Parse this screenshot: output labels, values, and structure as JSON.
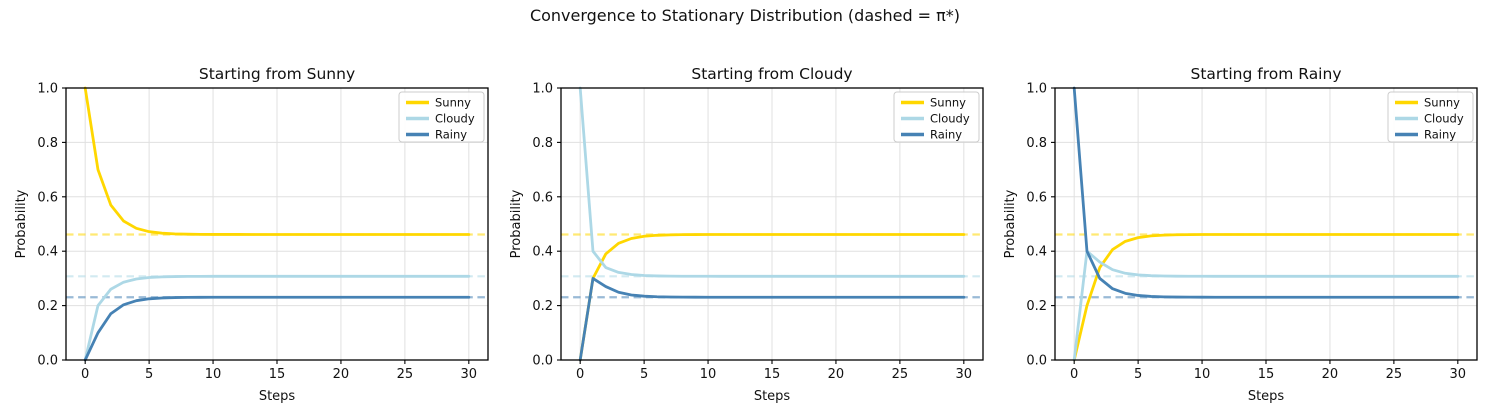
{
  "chart_data": {
    "type": "line",
    "suptitle": "Convergence to Stationary Distribution (dashed = π*)",
    "xlabel": "Steps",
    "ylabel": "Probability",
    "x": [
      0,
      1,
      2,
      3,
      4,
      5,
      6,
      7,
      8,
      9,
      10,
      11,
      12,
      13,
      14,
      15,
      16,
      17,
      18,
      19,
      20,
      21,
      22,
      23,
      24,
      25,
      26,
      27,
      28,
      29,
      30
    ],
    "x_ticks": [
      0,
      5,
      10,
      15,
      20,
      25,
      30
    ],
    "y_ticks": [
      "0.0",
      "0.2",
      "0.4",
      "0.6",
      "0.8",
      "1.0"
    ],
    "xlim": [
      -1.5,
      31.5
    ],
    "ylim": [
      0,
      1
    ],
    "grid": true,
    "legend": {
      "position": "upper right",
      "entries": [
        "Sunny",
        "Cloudy",
        "Rainy"
      ]
    },
    "series_colors": {
      "Sunny": "#FFD700",
      "Cloudy": "#ADD8E6",
      "Rainy": "#4682B4"
    },
    "stationary": {
      "Sunny": 0.4615,
      "Cloudy": 0.3077,
      "Rainy": 0.2308
    },
    "style": {
      "grid_color": "#e0e0e0",
      "text_color": "#111111",
      "spine_color": "#000000",
      "legend_border": "#cccccc",
      "dashed_opacity": 0.55,
      "line_width": 2.8,
      "dash_pattern": "7.5 4.6"
    },
    "subplots": [
      {
        "title": "Starting from Sunny",
        "series": [
          {
            "name": "Sunny",
            "values": [
              1.0,
              0.7,
              0.57,
              0.511,
              0.4841,
              0.4718,
              0.4662,
              0.4637,
              0.4625,
              0.462,
              0.4617,
              0.4616,
              0.4616,
              0.4615,
              0.4615,
              0.4615,
              0.4615,
              0.4615,
              0.4615,
              0.4615,
              0.4615,
              0.4615,
              0.4615,
              0.4615,
              0.4615,
              0.4615,
              0.4615,
              0.4615,
              0.4615,
              0.4615,
              0.4615
            ]
          },
          {
            "name": "Cloudy",
            "values": [
              0.0,
              0.2,
              0.26,
              0.286,
              0.2978,
              0.3032,
              0.3056,
              0.3068,
              0.3073,
              0.3075,
              0.3076,
              0.3077,
              0.3077,
              0.3077,
              0.3077,
              0.3077,
              0.3077,
              0.3077,
              0.3077,
              0.3077,
              0.3077,
              0.3077,
              0.3077,
              0.3077,
              0.3077,
              0.3077,
              0.3077,
              0.3077,
              0.3077,
              0.3077,
              0.3077
            ]
          },
          {
            "name": "Rainy",
            "values": [
              0.0,
              0.1,
              0.17,
              0.203,
              0.2181,
              0.225,
              0.2281,
              0.2296,
              0.2302,
              0.2305,
              0.2307,
              0.2307,
              0.2307,
              0.2308,
              0.2308,
              0.2308,
              0.2308,
              0.2308,
              0.2308,
              0.2308,
              0.2308,
              0.2308,
              0.2308,
              0.2308,
              0.2308,
              0.2308,
              0.2308,
              0.2308,
              0.2308,
              0.2308,
              0.2308
            ]
          }
        ]
      },
      {
        "title": "Starting from Cloudy",
        "series": [
          {
            "name": "Sunny",
            "values": [
              0.0,
              0.3,
              0.39,
              0.429,
              0.4467,
              0.4548,
              0.4585,
              0.4601,
              0.4609,
              0.4612,
              0.4614,
              0.4615,
              0.4615,
              0.4615,
              0.4615,
              0.4615,
              0.4615,
              0.4615,
              0.4615,
              0.4615,
              0.4615,
              0.4615,
              0.4615,
              0.4615,
              0.4615,
              0.4615,
              0.4615,
              0.4615,
              0.4615,
              0.4615,
              0.4615
            ]
          },
          {
            "name": "Cloudy",
            "values": [
              1.0,
              0.4,
              0.34,
              0.322,
              0.3142,
              0.3107,
              0.309,
              0.3083,
              0.308,
              0.3078,
              0.3078,
              0.3077,
              0.3077,
              0.3077,
              0.3077,
              0.3077,
              0.3077,
              0.3077,
              0.3077,
              0.3077,
              0.3077,
              0.3077,
              0.3077,
              0.3077,
              0.3077,
              0.3077,
              0.3077,
              0.3077,
              0.3077,
              0.3077,
              0.3077
            ]
          },
          {
            "name": "Rainy",
            "values": [
              0.0,
              0.3,
              0.27,
              0.249,
              0.2391,
              0.2346,
              0.2325,
              0.2316,
              0.2311,
              0.2309,
              0.2308,
              0.2308,
              0.2308,
              0.2308,
              0.2308,
              0.2308,
              0.2308,
              0.2308,
              0.2308,
              0.2308,
              0.2308,
              0.2308,
              0.2308,
              0.2308,
              0.2308,
              0.2308,
              0.2308,
              0.2308,
              0.2308,
              0.2308,
              0.2308
            ]
          }
        ]
      },
      {
        "title": "Starting from Rainy",
        "series": [
          {
            "name": "Sunny",
            "values": [
              0.0,
              0.2,
              0.34,
              0.406,
              0.4362,
              0.45,
              0.4563,
              0.4591,
              0.4604,
              0.461,
              0.4613,
              0.4614,
              0.4615,
              0.4615,
              0.4615,
              0.4615,
              0.4615,
              0.4615,
              0.4615,
              0.4615,
              0.4615,
              0.4615,
              0.4615,
              0.4615,
              0.4615,
              0.4615,
              0.4615,
              0.4615,
              0.4615,
              0.4615,
              0.4615
            ]
          },
          {
            "name": "Cloudy",
            "values": [
              0.0,
              0.4,
              0.36,
              0.332,
              0.3188,
              0.3128,
              0.31,
              0.3087,
              0.3082,
              0.3079,
              0.3078,
              0.3077,
              0.3077,
              0.3077,
              0.3077,
              0.3077,
              0.3077,
              0.3077,
              0.3077,
              0.3077,
              0.3077,
              0.3077,
              0.3077,
              0.3077,
              0.3077,
              0.3077,
              0.3077,
              0.3077,
              0.3077,
              0.3077,
              0.3077
            ]
          },
          {
            "name": "Rainy",
            "values": [
              1.0,
              0.4,
              0.3,
              0.262,
              0.245,
              0.2373,
              0.2337,
              0.2321,
              0.2314,
              0.2311,
              0.2309,
              0.2308,
              0.2308,
              0.2308,
              0.2308,
              0.2308,
              0.2308,
              0.2308,
              0.2308,
              0.2308,
              0.2308,
              0.2308,
              0.2308,
              0.2308,
              0.2308,
              0.2308,
              0.2308,
              0.2308,
              0.2308,
              0.2308,
              0.2308
            ]
          }
        ]
      }
    ]
  }
}
